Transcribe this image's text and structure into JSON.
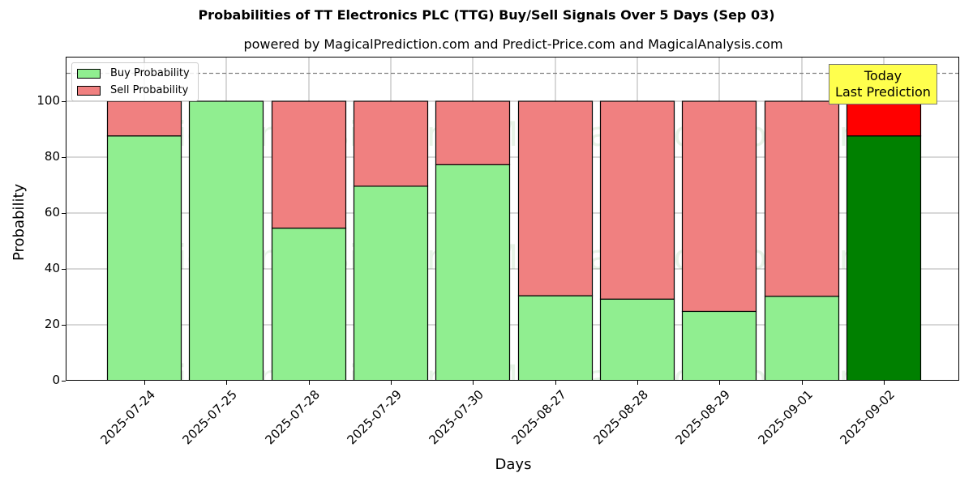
{
  "header": {
    "title": "Probabilities of TT Electronics PLC (TTG) Buy/Sell Signals Over 5 Days (Sep 03)",
    "subtitle": "powered by MagicalPrediction.com and Predict-Price.com and MagicalAnalysis.com"
  },
  "legend": {
    "buy_label": "Buy Probability",
    "sell_label": "Sell Probability"
  },
  "annotation": {
    "line1": "Today",
    "line2": "Last Prediction"
  },
  "watermarks": [
    "MagicalAnalysis.com",
    "MagicalPrediction.com"
  ],
  "colors": {
    "buy": "#90ee90",
    "sell": "#f08080",
    "buy_today": "#008000",
    "sell_today": "#ff0000",
    "annotation_bg": "#ffff4d"
  },
  "chart_data": {
    "type": "bar",
    "stacked": true,
    "title": "Probabilities of TT Electronics PLC (TTG) Buy/Sell Signals Over 5 Days (Sep 03)",
    "subtitle": "powered by MagicalPrediction.com and Predict-Price.com and MagicalAnalysis.com",
    "xlabel": "Days",
    "ylabel": "Probability",
    "ylim": [
      0,
      116
    ],
    "yticks": [
      0,
      20,
      40,
      60,
      80,
      100
    ],
    "grid": true,
    "legend_position": "upper left",
    "reference_line": {
      "y": 110,
      "style": "dashed"
    },
    "categories": [
      "2025-07-24",
      "2025-07-25",
      "2025-07-28",
      "2025-07-29",
      "2025-07-30",
      "2025-08-27",
      "2025-08-28",
      "2025-08-29",
      "2025-09-01",
      "2025-09-02"
    ],
    "series": [
      {
        "name": "Buy Probability",
        "values": [
          87.6,
          100.0,
          54.6,
          69.6,
          77.3,
          30.4,
          29.2,
          24.8,
          30.2,
          87.6
        ]
      },
      {
        "name": "Sell Probability",
        "values": [
          12.4,
          0.0,
          45.4,
          30.4,
          22.7,
          69.6,
          70.8,
          75.2,
          69.8,
          12.4
        ]
      }
    ],
    "annotations": [
      {
        "text": "Today\nLast Prediction",
        "x": "2025-09-02"
      }
    ]
  }
}
